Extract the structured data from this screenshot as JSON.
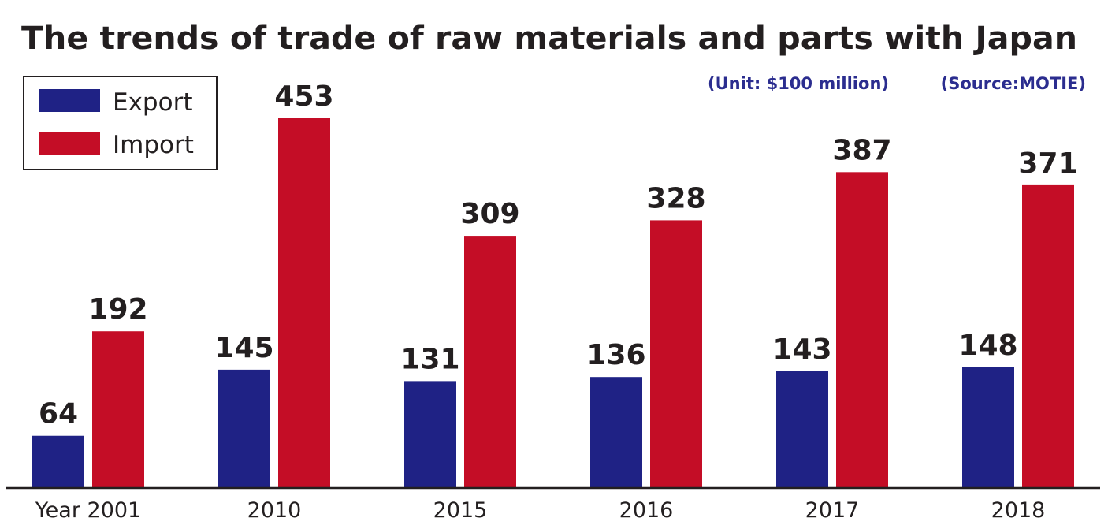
{
  "chart_data": {
    "type": "bar",
    "title": "The trends of trade of raw materials and parts with Japan",
    "unit_note": "(Unit: $100 million)",
    "source_note": "(Source:MOTIE)",
    "categories": [
      "Year 2001",
      "2010",
      "2015",
      "2016",
      "2017",
      "2018"
    ],
    "series": [
      {
        "name": "Export",
        "color": "#1f2285",
        "values": [
          64,
          145,
          131,
          136,
          143,
          148
        ]
      },
      {
        "name": "Import",
        "color": "#c40d26",
        "values": [
          192,
          453,
          309,
          328,
          387,
          371
        ]
      }
    ],
    "ylim": [
      0,
      453
    ],
    "xlabel": "",
    "ylabel": "",
    "legend": "top-left",
    "grid": false
  },
  "colors": {
    "note": "#2b2d8f",
    "text": "#231f20"
  }
}
